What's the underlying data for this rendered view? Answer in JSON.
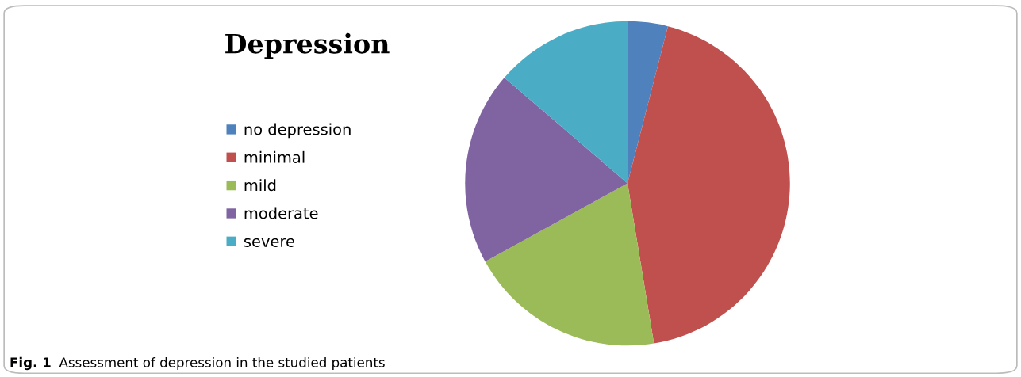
{
  "chart_data": {
    "type": "pie",
    "title": "Depression",
    "categories": [
      "no depression",
      "minimal",
      "mild",
      "moderate",
      "severe"
    ],
    "values": [
      4,
      43.4,
      19.6,
      19.3,
      13.7
    ],
    "colors": [
      "#4f81bd",
      "#c0504d",
      "#9bbb59",
      "#8064a2",
      "#4bacc6"
    ],
    "legend": "left",
    "annotations": [
      "Fig. 1",
      "Assessment of depression in the studied patients"
    ]
  }
}
